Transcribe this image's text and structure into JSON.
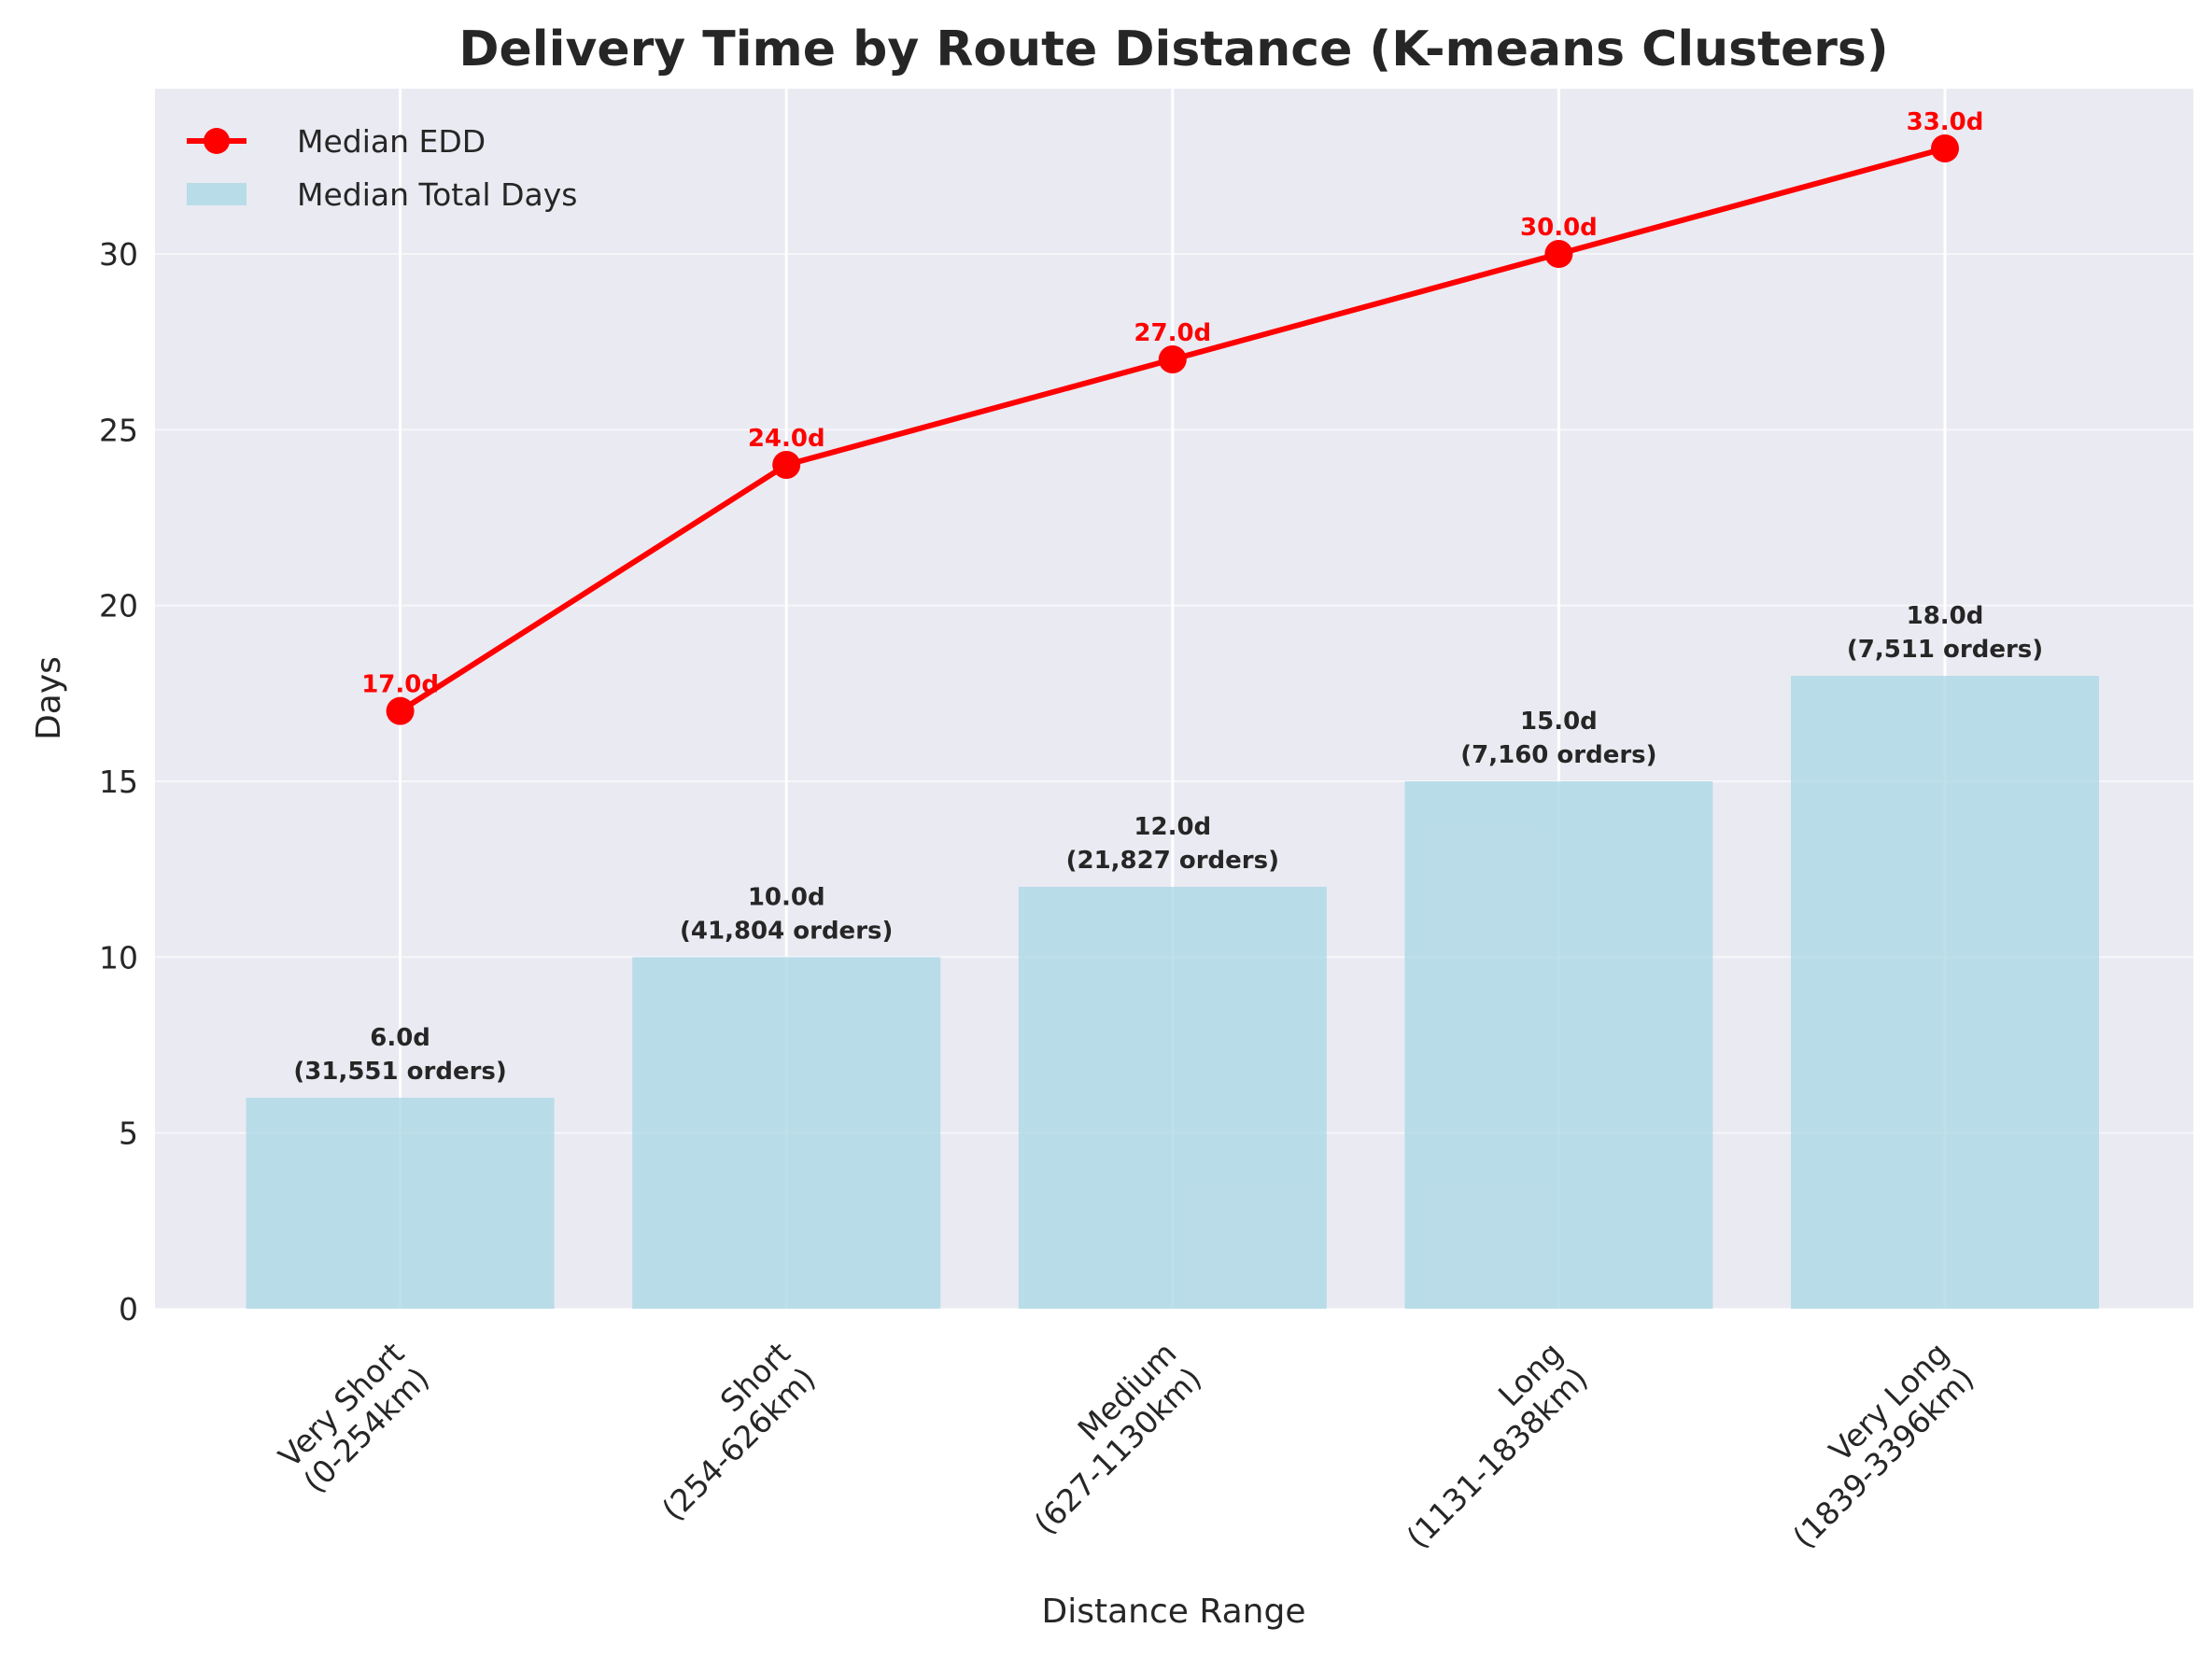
{
  "chart_data": {
    "type": "bar",
    "title": "Delivery Time by Route Distance (K-means Clusters)",
    "xlabel": "Distance Range",
    "ylabel": "Days",
    "ylim": [
      0,
      34.7
    ],
    "yticks": [
      0,
      5,
      10,
      15,
      20,
      25,
      30
    ],
    "grid": true,
    "legend_position": "top-left",
    "categories": [
      "Very Short\n(0-254km)",
      "Short\n(254-626km)",
      "Medium\n(627-1130km)",
      "Long\n(1131-1838km)",
      "Very Long\n(1839-3396km)"
    ],
    "series": [
      {
        "name": "Median Total Days",
        "kind": "bar",
        "color": "#add8e6",
        "values": [
          6.0,
          10.0,
          12.0,
          15.0,
          18.0
        ],
        "labels": [
          "6.0d\n(31,551 orders)",
          "10.0d\n(41,804 orders)",
          "12.0d\n(21,827 orders)",
          "15.0d\n(7,160 orders)",
          "18.0d\n(7,511 orders)"
        ]
      },
      {
        "name": "Median EDD",
        "kind": "line",
        "color": "#ff0000",
        "values": [
          17.0,
          24.0,
          27.0,
          30.0,
          33.0
        ],
        "labels": [
          "17.0d",
          "24.0d",
          "27.0d",
          "30.0d",
          "33.0d"
        ]
      }
    ],
    "colors": {
      "plot_background": "#eaeaf2",
      "grid": "#ffffff",
      "text": "#262626"
    }
  }
}
